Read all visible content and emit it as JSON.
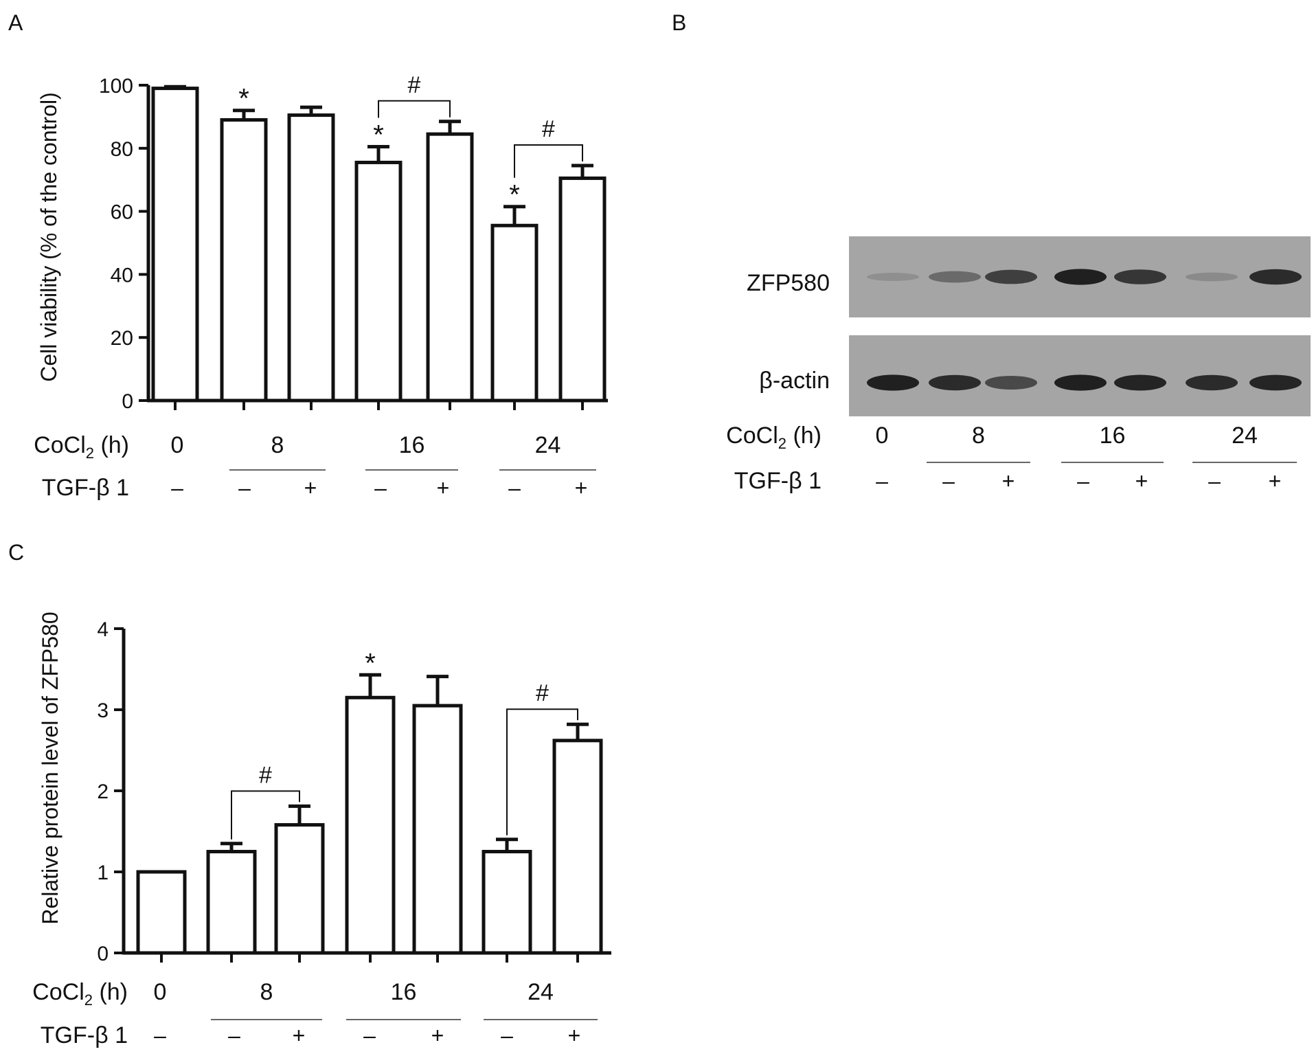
{
  "panels": {
    "a": {
      "letter": "A",
      "chart_data": {
        "type": "bar",
        "ylabel": "Cell viability (% of the control)",
        "ylim": [
          0,
          100
        ],
        "yticks": [
          0,
          20,
          40,
          60,
          80,
          100
        ],
        "values": [
          99,
          89,
          90.5,
          75.5,
          84.5,
          55.5,
          70.5
        ],
        "errors": [
          0.5,
          3,
          2.5,
          5,
          4,
          6,
          4
        ],
        "significance": [
          "",
          "*",
          "",
          "*",
          "",
          "*",
          ""
        ],
        "brackets": [
          {
            "from": 3,
            "to": 4,
            "label": "#"
          },
          {
            "from": 5,
            "to": 6,
            "label": "#"
          }
        ]
      }
    },
    "b": {
      "letter": "B",
      "blot": {
        "bands": [
          {
            "label": "ZFP580",
            "intensities": [
              0.25,
              0.55,
              0.8,
              0.95,
              0.85,
              0.3,
              0.9
            ]
          },
          {
            "label": "β-actin",
            "intensities": [
              0.95,
              0.9,
              0.75,
              0.95,
              0.93,
              0.9,
              0.92
            ]
          }
        ]
      }
    },
    "c": {
      "letter": "C",
      "chart_data": {
        "type": "bar",
        "ylabel": "Relative protein level of ZFP580",
        "ylim": [
          0,
          4
        ],
        "yticks": [
          0,
          1,
          2,
          3,
          4
        ],
        "values": [
          1.0,
          1.25,
          1.58,
          3.15,
          3.05,
          1.25,
          2.62
        ],
        "errors": [
          0.0,
          0.1,
          0.23,
          0.28,
          0.36,
          0.15,
          0.2
        ],
        "significance": [
          "",
          "",
          "",
          "*",
          "",
          "",
          ""
        ],
        "brackets": [
          {
            "from": 1,
            "to": 2,
            "label": "#"
          },
          {
            "from": 5,
            "to": 6,
            "label": "#"
          }
        ]
      }
    }
  },
  "conditions": {
    "cocl2_label": "CoCl",
    "cocl2_sub": "2",
    "cocl2_unit": " (h)",
    "tgf_label": "TGF-β 1",
    "time_labels": [
      "0",
      "8",
      "16",
      "24"
    ],
    "tgf_signs": [
      "–",
      "–",
      "+",
      "–",
      "+",
      "–",
      "+"
    ]
  }
}
